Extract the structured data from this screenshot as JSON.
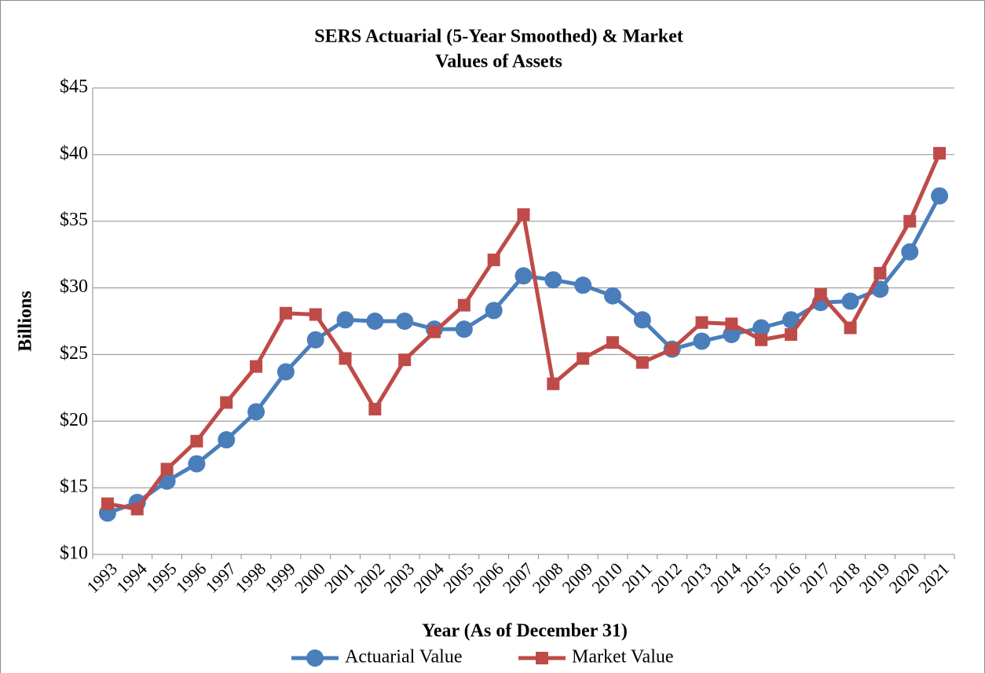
{
  "chart_data": {
    "type": "line",
    "title": [
      "SERS Actuarial (5-Year Smoothed)  & Market",
      "Values of Assets"
    ],
    "x_label": "Year (As of December 31)",
    "y_label": "Billions",
    "categories": [
      "1993",
      "1994",
      "1995",
      "1996",
      "1997",
      "1998",
      "1999",
      "2000",
      "2001",
      "2002",
      "2003",
      "2004",
      "2005",
      "2006",
      "2007",
      "2008",
      "2009",
      "2010",
      "2011",
      "2012",
      "2013",
      "2014",
      "2015",
      "2016",
      "2017",
      "2018",
      "2019",
      "2020",
      "2021"
    ],
    "series": [
      {
        "name": "Actuarial Value",
        "color": "#4a7ebb",
        "marker": "circle",
        "values": [
          13.1,
          13.9,
          15.5,
          16.8,
          18.6,
          20.7,
          23.7,
          26.1,
          27.6,
          27.5,
          27.5,
          26.9,
          26.9,
          28.3,
          30.9,
          30.6,
          30.2,
          29.4,
          27.6,
          25.4,
          26.0,
          26.5,
          27.0,
          27.6,
          28.9,
          29.0,
          29.9,
          32.7,
          36.9
        ]
      },
      {
        "name": "Market Value",
        "color": "#be4b48",
        "marker": "square",
        "values": [
          13.8,
          13.4,
          16.4,
          18.5,
          21.4,
          24.1,
          28.1,
          28.0,
          24.7,
          20.9,
          24.6,
          26.7,
          28.7,
          32.1,
          35.5,
          22.8,
          24.7,
          25.9,
          24.4,
          25.4,
          27.4,
          27.3,
          26.1,
          26.5,
          29.5,
          27.0,
          31.1,
          35.0,
          40.1
        ]
      }
    ],
    "ylim": [
      10,
      45
    ],
    "yticks": [
      {
        "value": 10,
        "label": "$10"
      },
      {
        "value": 15,
        "label": "$15"
      },
      {
        "value": 20,
        "label": "$20"
      },
      {
        "value": 25,
        "label": "$25"
      },
      {
        "value": 30,
        "label": "$30"
      },
      {
        "value": 35,
        "label": "$35"
      },
      {
        "value": 40,
        "label": "$40"
      },
      {
        "value": 45,
        "label": "$45"
      }
    ],
    "grid": true,
    "legend": "bottom"
  }
}
